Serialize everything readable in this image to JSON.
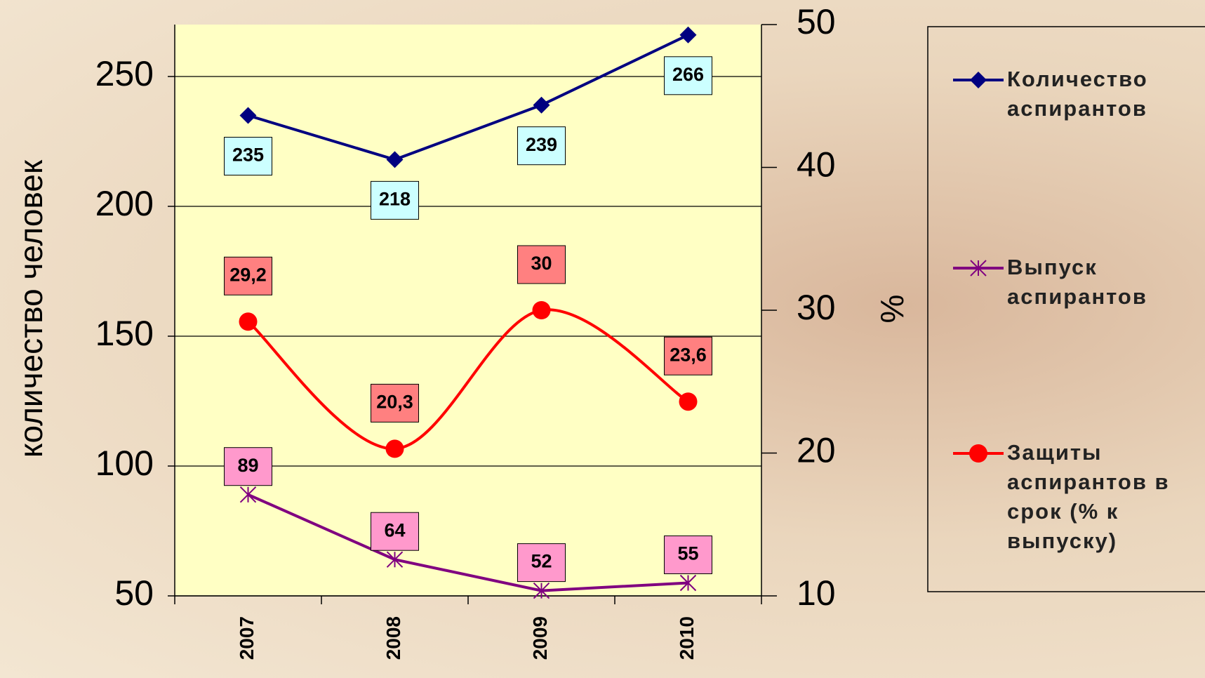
{
  "chart_data": {
    "type": "line",
    "categories": [
      "2007",
      "2008",
      "2009",
      "2010"
    ],
    "y_label": "количество человек",
    "y2_label": "%",
    "ylim": [
      50,
      270
    ],
    "yticks": [
      50,
      100,
      150,
      200,
      250
    ],
    "y2lim": [
      10,
      50
    ],
    "y2ticks": [
      10,
      20,
      30,
      40,
      50
    ],
    "grid": true,
    "series": [
      {
        "name": "Количество аспирантов",
        "color": "#000080",
        "marker": "diamond",
        "label_fill": "#ccffff",
        "values": [
          235,
          218,
          239,
          266
        ]
      },
      {
        "name": "Выпуск аспирантов",
        "color": "#800080",
        "marker": "star",
        "label_fill": "#ff99cc",
        "values": [
          89,
          64,
          52,
          55
        ]
      },
      {
        "name": "Защиты аспирантов в срок (% к выпуску)",
        "color": "#ff0000",
        "marker": "circle",
        "label_fill": "#ff8080",
        "axis": "y2",
        "smooth": true,
        "values": [
          29.2,
          20.3,
          30,
          23.6
        ],
        "value_labels": [
          "29,2",
          "20,3",
          "30",
          "23,6"
        ]
      }
    ]
  }
}
